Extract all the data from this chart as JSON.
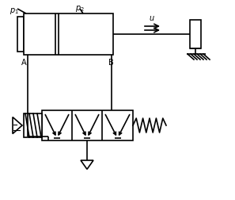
{
  "bg_color": "#ffffff",
  "line_color": "#000000",
  "lw": 1.2,
  "fig_width": 2.97,
  "fig_height": 2.53,
  "dpi": 100
}
